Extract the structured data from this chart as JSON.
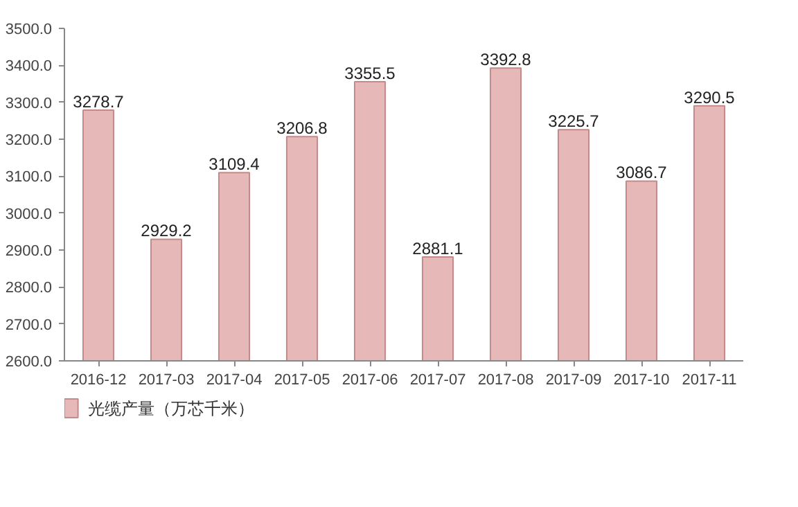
{
  "chart_data": {
    "type": "bar",
    "categories": [
      "2016-12",
      "2017-03",
      "2017-04",
      "2017-05",
      "2017-06",
      "2017-07",
      "2017-08",
      "2017-09",
      "2017-10",
      "2017-11"
    ],
    "series": [
      {
        "name": "光缆产量（万芯千米）",
        "color": "#e6b9b8",
        "values": [
          3278.7,
          2929.2,
          3109.4,
          3206.8,
          3355.5,
          2881.1,
          3392.8,
          3225.7,
          3086.7,
          3290.5
        ]
      }
    ],
    "ylim": [
      2600,
      3500
    ],
    "yticks": [
      {
        "value": 2600,
        "label": "2600.0"
      },
      {
        "value": 2700,
        "label": "2700.0"
      },
      {
        "value": 2800,
        "label": "2800.0"
      },
      {
        "value": 2900,
        "label": "2900.0"
      },
      {
        "value": 3000,
        "label": "3000.0"
      },
      {
        "value": 3100,
        "label": "3100.0"
      },
      {
        "value": 3200,
        "label": "3200.0"
      },
      {
        "value": 3300,
        "label": "3300.0"
      },
      {
        "value": 3400,
        "label": "3400.0"
      },
      {
        "value": 3500,
        "label": "3500.0"
      }
    ],
    "data_labels": true,
    "grid": false,
    "legend": "bottom"
  }
}
